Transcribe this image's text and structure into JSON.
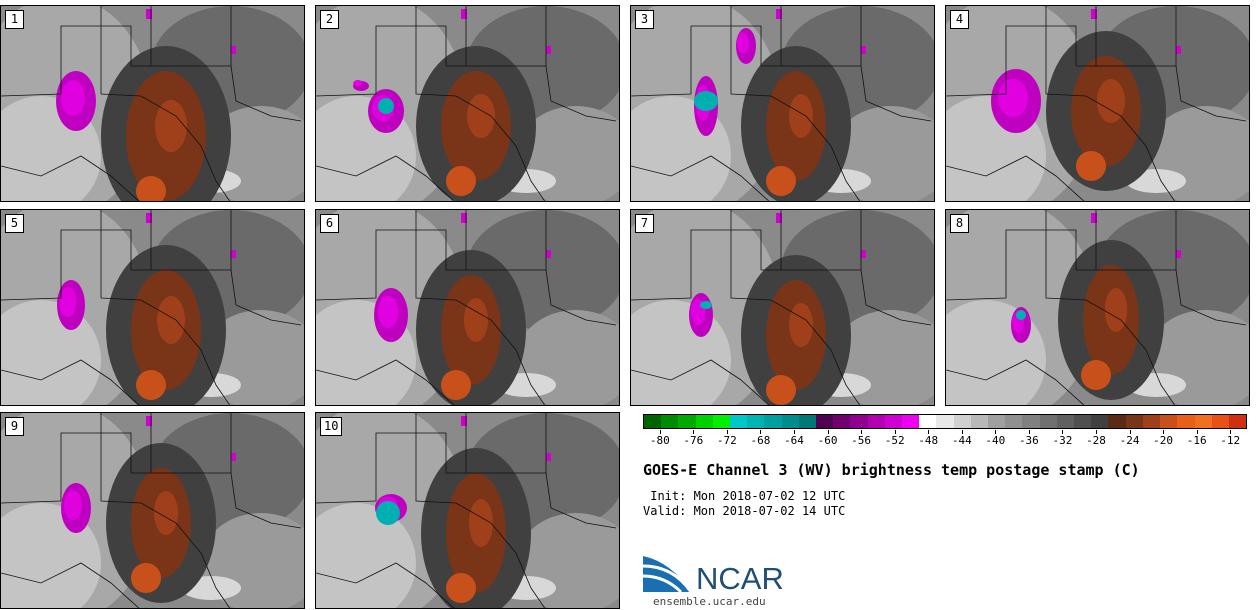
{
  "panels": [
    {
      "label": "1"
    },
    {
      "label": "2"
    },
    {
      "label": "3"
    },
    {
      "label": "4"
    },
    {
      "label": "5"
    },
    {
      "label": "6"
    },
    {
      "label": "7"
    },
    {
      "label": "8"
    },
    {
      "label": "9"
    },
    {
      "label": "10"
    }
  ],
  "colorbar": {
    "colors": [
      "#006400",
      "#008c00",
      "#00aa00",
      "#00d200",
      "#00f000",
      "#00c8c8",
      "#00b4b4",
      "#00a0a0",
      "#008c8c",
      "#007878",
      "#500050",
      "#700070",
      "#900090",
      "#b000b0",
      "#d000d0",
      "#f000f0",
      "#ffffff",
      "#e8e8e8",
      "#d0d0d0",
      "#b8b8b8",
      "#a0a0a0",
      "#909090",
      "#808080",
      "#707070",
      "#606060",
      "#505050",
      "#404040",
      "#5a2a14",
      "#7a3418",
      "#a0401a",
      "#c8501a",
      "#e86018",
      "#f07020",
      "#e85018",
      "#d03010"
    ],
    "tick_labels": [
      "-80",
      "-76",
      "-72",
      "-68",
      "-64",
      "-60",
      "-56",
      "-52",
      "-48",
      "-44",
      "-40",
      "-36",
      "-32",
      "-28",
      "-24",
      "-20",
      "-16",
      "-12"
    ],
    "min": -82,
    "max": -10
  },
  "title": "GOES-E Channel 3 (WV) brightness temp postage stamp (C)",
  "init": " Init: Mon 2018-07-02 12 UTC",
  "valid": "Valid: Mon 2018-07-02 14 UTC",
  "logo_text": "NCAR",
  "url": "ensemble.ucar.edu"
}
